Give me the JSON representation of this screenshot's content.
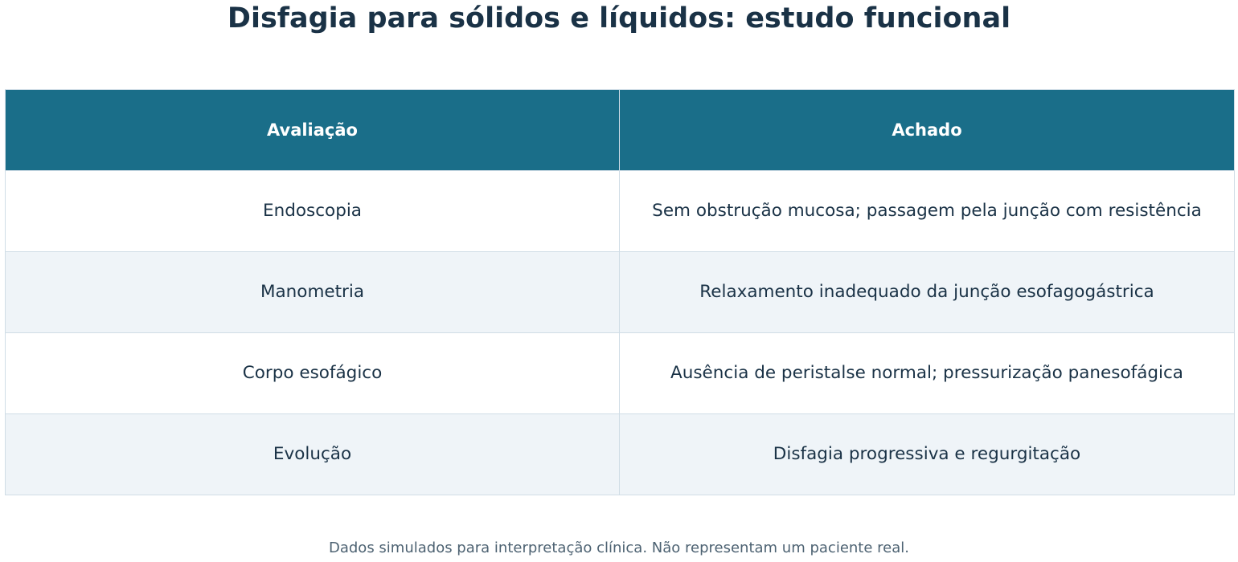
{
  "title": "Disfagia para sólidos e líquidos: estudo funcional",
  "colors": {
    "header_bg": "#1a6e89",
    "header_text": "#ffffff",
    "row_alt_bg": "#eff4f8",
    "border": "#d0dde6",
    "text": "#1a3246"
  },
  "chart_data": {
    "type": "table",
    "columns": [
      "Avaliação",
      "Achado"
    ],
    "rows": [
      [
        "Endoscopia",
        "Sem obstrução mucosa; passagem pela junção com resistência"
      ],
      [
        "Manometria",
        "Relaxamento inadequado da junção esofagogástrica"
      ],
      [
        "Corpo esofágico",
        "Ausência de peristalse normal; pressurização panesofágica"
      ],
      [
        "Evolução",
        "Disfagia progressiva e regurgitação"
      ]
    ]
  },
  "footnote": "Dados simulados para interpretação clínica. Não representam um paciente real."
}
